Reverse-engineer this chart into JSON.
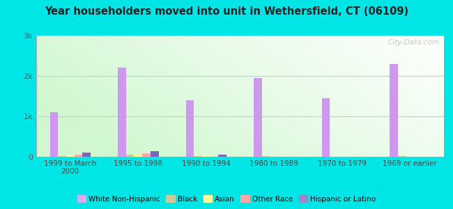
{
  "title": "Year householders moved into unit in Wethersfield, CT (06109)",
  "categories": [
    "1999 to March\n2000",
    "1995 to 1998",
    "1990 to 1994",
    "1980 to 1989",
    "1970 to 1979",
    "1969 or earlier"
  ],
  "series": {
    "White Non-Hispanic": [
      1100,
      2200,
      1400,
      1950,
      1450,
      2300
    ],
    "Black": [
      20,
      55,
      10,
      10,
      5,
      10
    ],
    "Asian": [
      30,
      45,
      12,
      8,
      4,
      5
    ],
    "Other Race": [
      60,
      85,
      8,
      8,
      4,
      8
    ],
    "Hispanic or Latino": [
      100,
      130,
      55,
      8,
      4,
      4
    ]
  },
  "colors": {
    "White Non-Hispanic": "#cc99ee",
    "Black": "#cccc99",
    "Asian": "#ffff99",
    "Other Race": "#ffaaaa",
    "Hispanic or Latino": "#7766bb"
  },
  "legend_colors": {
    "White Non-Hispanic": "#ddaaee",
    "Black": "#cccc99",
    "Asian": "#ffff99",
    "Other Race": "#ffaaaa",
    "Hispanic or Latino": "#9988cc"
  },
  "ylim": [
    0,
    3000
  ],
  "yticks": [
    0,
    1000,
    2000,
    3000
  ],
  "ytick_labels": [
    "0",
    "1k",
    "2k",
    "3k"
  ],
  "background_outer": "#00e5e5",
  "watermark": "City-Data.com",
  "bar_width": 0.12
}
